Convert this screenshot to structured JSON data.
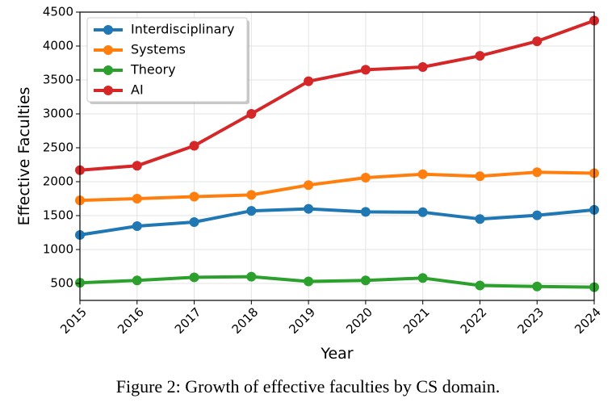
{
  "chart_data": {
    "type": "line",
    "title": "",
    "xlabel": "Year",
    "ylabel": "Effective Faculties",
    "x": [
      2015,
      2016,
      2017,
      2018,
      2019,
      2020,
      2021,
      2022,
      2023,
      2024
    ],
    "xlim": [
      2015,
      2024
    ],
    "ylim": [
      250,
      4500
    ],
    "yticks": [
      500,
      1000,
      1500,
      2000,
      2500,
      3000,
      3500,
      4000,
      4500
    ],
    "grid": true,
    "legend_position": "top-left",
    "series": [
      {
        "name": "Interdisciplinary",
        "color": "#1f77b4",
        "values": [
          1215,
          1345,
          1405,
          1570,
          1600,
          1555,
          1550,
          1450,
          1505,
          1585
        ]
      },
      {
        "name": "Systems",
        "color": "#ff7f0e",
        "values": [
          1725,
          1750,
          1780,
          1805,
          1950,
          2060,
          2110,
          2080,
          2140,
          2125
        ]
      },
      {
        "name": "Theory",
        "color": "#2ca02c",
        "values": [
          510,
          545,
          590,
          600,
          530,
          545,
          580,
          470,
          455,
          445
        ]
      },
      {
        "name": "AI",
        "color": "#d62728",
        "values": [
          2170,
          2235,
          2530,
          3000,
          3480,
          3650,
          3690,
          3855,
          4070,
          4375
        ]
      }
    ]
  },
  "caption": "Figure 2: Growth of effective faculties by CS domain."
}
